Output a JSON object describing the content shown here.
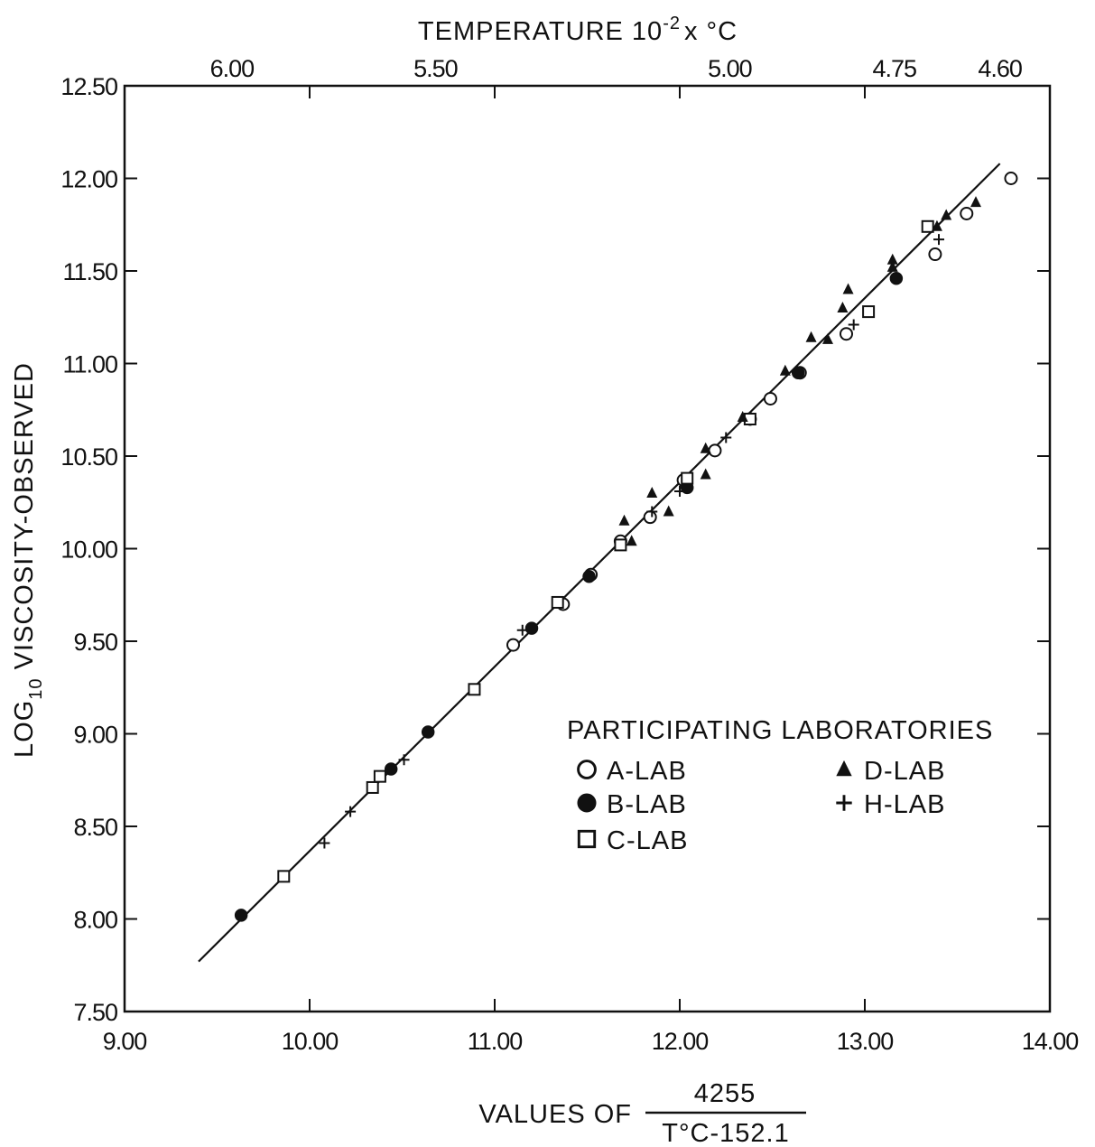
{
  "chart_data": {
    "type": "scatter",
    "title": "",
    "xlabel": "VALUES OF",
    "xlabel_fraction": {
      "numerator": "4255",
      "denominator": "T°C-152.1"
    },
    "ylabel": {
      "prefix": "LOG",
      "subscript": "10",
      "suffix": " VISCOSITY-OBSERVED"
    },
    "top_axis": {
      "label": {
        "prefix": "TEMPERATURE 10",
        "superscript": "-2",
        "suffix": "x °C"
      },
      "ticks": [
        {
          "label": "6.00",
          "x": 9.58
        },
        {
          "label": "5.50",
          "x": 10.68
        },
        {
          "label": "5.00",
          "x": 12.27
        },
        {
          "label": "4.75",
          "x": 13.16
        },
        {
          "label": "4.60",
          "x": 13.73
        }
      ]
    },
    "xlim": [
      9.0,
      14.0
    ],
    "ylim": [
      7.5,
      12.5
    ],
    "x_ticks": [
      "9.00",
      "10.00",
      "11.00",
      "12.00",
      "13.00",
      "14.00"
    ],
    "y_ticks": [
      "7.50",
      "8.00",
      "8.50",
      "9.00",
      "9.50",
      "10.00",
      "10.50",
      "11.00",
      "11.50",
      "12.00",
      "12.50"
    ],
    "grid": false,
    "legend_title": "PARTICIPATING LABORATORIES",
    "legend_position": "lower-right",
    "fit_line": {
      "x": [
        9.4,
        13.73
      ],
      "y": [
        7.77,
        12.08
      ]
    },
    "series": [
      {
        "name": "A-LAB",
        "marker": "open-circle",
        "x": [
          11.1,
          11.37,
          11.52,
          11.68,
          11.84,
          12.02,
          12.19,
          12.38,
          12.49,
          12.65,
          12.9,
          13.38,
          13.55,
          13.79
        ],
        "y": [
          9.48,
          9.7,
          9.86,
          10.04,
          10.17,
          10.37,
          10.53,
          10.7,
          10.81,
          10.95,
          11.16,
          11.59,
          11.81,
          12.0
        ]
      },
      {
        "name": "B-LAB",
        "marker": "filled-circle",
        "x": [
          9.63,
          10.44,
          10.64,
          11.2,
          11.51,
          12.04,
          12.64,
          13.17
        ],
        "y": [
          8.02,
          8.81,
          9.01,
          9.57,
          9.85,
          10.33,
          10.95,
          11.46
        ]
      },
      {
        "name": "C-LAB",
        "marker": "open-square",
        "x": [
          9.86,
          10.34,
          10.38,
          10.89,
          11.34,
          11.68,
          12.04,
          12.38,
          13.02,
          13.34
        ],
        "y": [
          8.23,
          8.71,
          8.77,
          9.24,
          9.71,
          10.02,
          10.38,
          10.7,
          11.28,
          11.74
        ]
      },
      {
        "name": "D-LAB",
        "marker": "filled-triangle",
        "x": [
          11.7,
          11.74,
          11.85,
          11.94,
          12.14,
          12.14,
          12.34,
          12.57,
          12.71,
          12.8,
          12.88,
          12.91,
          13.15,
          13.15,
          13.39,
          13.44,
          13.6
        ],
        "y": [
          10.15,
          10.04,
          10.3,
          10.2,
          10.54,
          10.4,
          10.71,
          10.96,
          11.14,
          11.13,
          11.3,
          11.4,
          11.56,
          11.52,
          11.74,
          11.8,
          11.87
        ]
      },
      {
        "name": "H-LAB",
        "marker": "plus",
        "x": [
          10.08,
          10.22,
          10.51,
          11.15,
          11.85,
          12.0,
          12.25,
          12.94,
          13.4
        ],
        "y": [
          8.41,
          8.58,
          8.86,
          9.56,
          10.2,
          10.31,
          10.6,
          11.21,
          11.67
        ]
      }
    ]
  }
}
